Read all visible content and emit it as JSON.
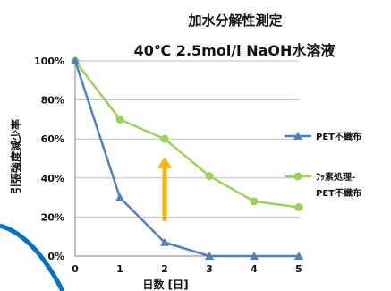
{
  "chart_data": {
    "type": "line",
    "title": "加水分解性測定",
    "subtitle": "40℃ 2.5mol/l NaOH水溶液",
    "xlabel": "日数 [日]",
    "ylabel": "引張強度減少率",
    "x": [
      0,
      1,
      2,
      3,
      4,
      5
    ],
    "x_ticks": [
      "0",
      "1",
      "2",
      "3",
      "4",
      "5"
    ],
    "y_ticks": [
      "0%",
      "20%",
      "40%",
      "60%",
      "80%",
      "100%"
    ],
    "ylim": [
      0,
      100
    ],
    "grid": true,
    "legend_position": "right",
    "series": [
      {
        "name": "PET不織布",
        "values": [
          100,
          30,
          7,
          0,
          0,
          0
        ],
        "color": "#4f81bd",
        "marker": "triangle"
      },
      {
        "name_line1": "ﾌｯ素処理-",
        "name_line2": "PET不織布",
        "values": [
          100,
          70,
          60,
          41,
          28,
          25
        ],
        "color": "#9bd15a",
        "marker": "circle"
      }
    ],
    "annotation": {
      "type": "arrow",
      "color": "#f5b700",
      "direction": "up"
    },
    "decoration_color": "#0070c0"
  }
}
